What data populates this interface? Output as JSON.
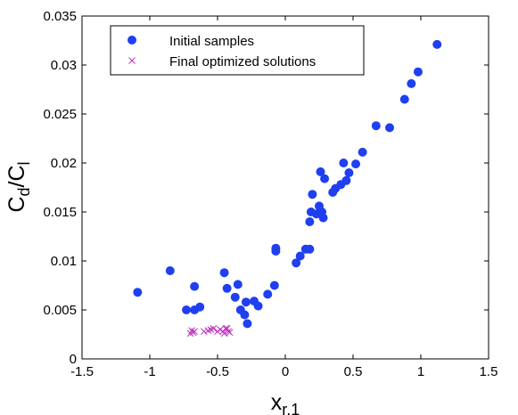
{
  "chart_data": {
    "type": "scatter",
    "title": "",
    "xlabel": "x",
    "xlabel_subscript": "r,1",
    "ylabel": "C",
    "ylabel_sub1": "d",
    "ylabel_mid": "/C",
    "ylabel_sub2": "l",
    "xlim": [
      -1.5,
      1.5
    ],
    "ylim": [
      0,
      0.035
    ],
    "xticks": [
      -1.5,
      -1,
      -0.5,
      0,
      0.5,
      1,
      1.5
    ],
    "xtick_labels": [
      "-1.5",
      "-1",
      "-0.5",
      "0",
      "0.5",
      "1",
      "1.5"
    ],
    "yticks": [
      0,
      0.005,
      0.01,
      0.015,
      0.02,
      0.025,
      0.03,
      0.035
    ],
    "ytick_labels": [
      "0",
      "0.005",
      "0.01",
      "0.015",
      "0.02",
      "0.025",
      "0.03",
      "0.035"
    ],
    "grid": false,
    "legend_position": "top-left",
    "series": [
      {
        "name": "Initial samples",
        "marker": "circle",
        "color": "#1f3ff0",
        "points": [
          [
            -1.09,
            0.0068
          ],
          [
            -0.85,
            0.009
          ],
          [
            -0.73,
            0.005
          ],
          [
            -0.67,
            0.0074
          ],
          [
            -0.67,
            0.005
          ],
          [
            -0.63,
            0.0053
          ],
          [
            -0.45,
            0.0088
          ],
          [
            -0.43,
            0.0072
          ],
          [
            -0.37,
            0.0063
          ],
          [
            -0.35,
            0.0076
          ],
          [
            -0.33,
            0.005
          ],
          [
            -0.3,
            0.0045
          ],
          [
            -0.29,
            0.0058
          ],
          [
            -0.28,
            0.0036
          ],
          [
            -0.23,
            0.0059
          ],
          [
            -0.2,
            0.0054
          ],
          [
            -0.13,
            0.0066
          ],
          [
            -0.08,
            0.0075
          ],
          [
            -0.07,
            0.011
          ],
          [
            -0.07,
            0.0113
          ],
          [
            0.08,
            0.0098
          ],
          [
            0.11,
            0.0105
          ],
          [
            0.15,
            0.0112
          ],
          [
            0.18,
            0.0112
          ],
          [
            0.18,
            0.014
          ],
          [
            0.19,
            0.015
          ],
          [
            0.2,
            0.0168
          ],
          [
            0.23,
            0.0148
          ],
          [
            0.25,
            0.0156
          ],
          [
            0.26,
            0.0191
          ],
          [
            0.27,
            0.015
          ],
          [
            0.28,
            0.0144
          ],
          [
            0.29,
            0.0184
          ],
          [
            0.35,
            0.017
          ],
          [
            0.37,
            0.0174
          ],
          [
            0.41,
            0.0178
          ],
          [
            0.43,
            0.02
          ],
          [
            0.45,
            0.0182
          ],
          [
            0.47,
            0.019
          ],
          [
            0.52,
            0.0199
          ],
          [
            0.57,
            0.0211
          ],
          [
            0.67,
            0.0238
          ],
          [
            0.77,
            0.0236
          ],
          [
            0.88,
            0.0265
          ],
          [
            0.93,
            0.0281
          ],
          [
            0.98,
            0.0293
          ],
          [
            1.12,
            0.0321
          ]
        ]
      },
      {
        "name": "Final optimized solutions",
        "marker": "x",
        "color": "#c030c0",
        "points": [
          [
            -0.7,
            0.0026
          ],
          [
            -0.69,
            0.0029
          ],
          [
            -0.68,
            0.0027
          ],
          [
            -0.67,
            0.0028
          ],
          [
            -0.6,
            0.0028
          ],
          [
            -0.57,
            0.0029
          ],
          [
            -0.55,
            0.003
          ],
          [
            -0.53,
            0.0031
          ],
          [
            -0.5,
            0.0028
          ],
          [
            -0.48,
            0.003
          ],
          [
            -0.46,
            0.0028
          ],
          [
            -0.45,
            0.0026
          ],
          [
            -0.44,
            0.0031
          ],
          [
            -0.43,
            0.0031
          ],
          [
            -0.42,
            0.0028
          ],
          [
            -0.41,
            0.0027
          ]
        ]
      }
    ]
  }
}
